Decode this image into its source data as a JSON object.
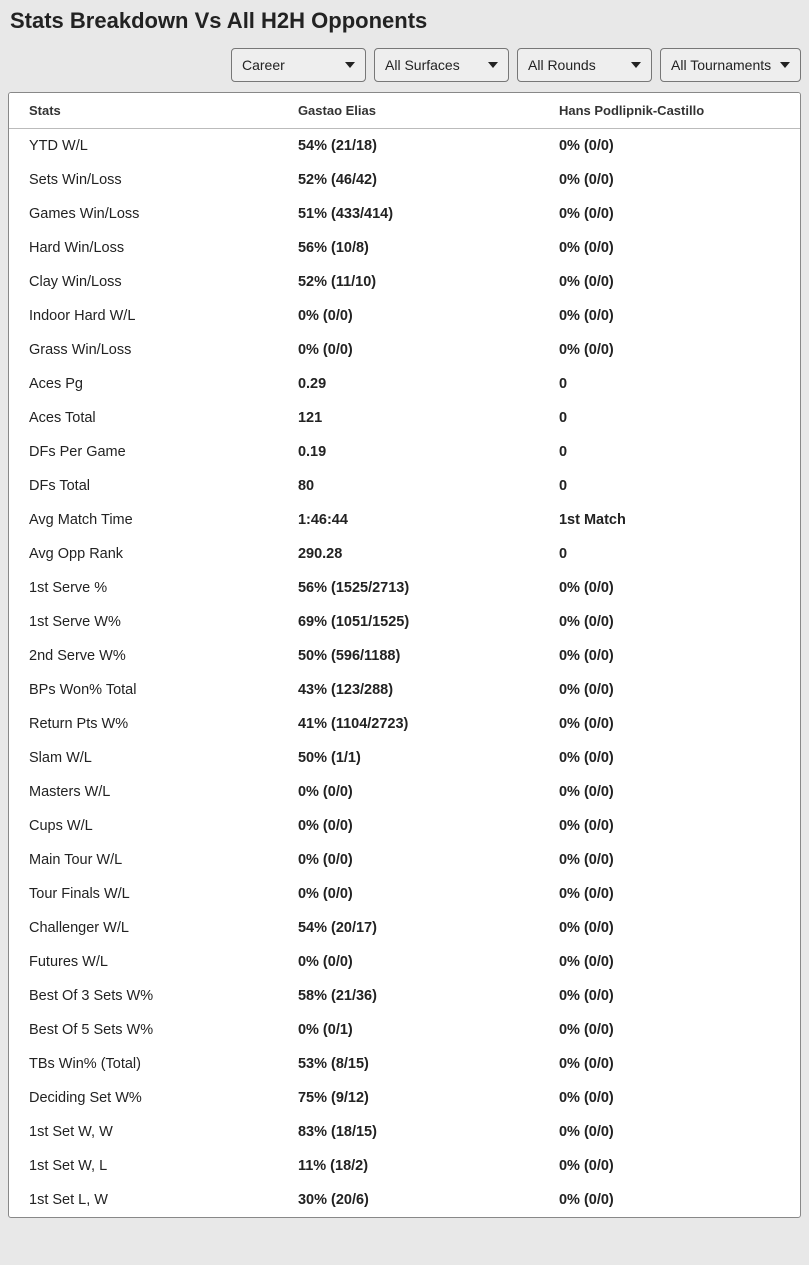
{
  "title": "Stats Breakdown Vs All H2H Opponents",
  "filters": {
    "career": "Career",
    "surfaces": "All Surfaces",
    "rounds": "All Rounds",
    "tournaments": "All Tournaments"
  },
  "columns": {
    "stats": "Stats",
    "player1": "Gastao Elias",
    "player2": "Hans Podlipnik-Castillo"
  },
  "rows": [
    {
      "label": "YTD W/L",
      "p1": "54% (21/18)",
      "p2": "0% (0/0)"
    },
    {
      "label": "Sets Win/Loss",
      "p1": "52% (46/42)",
      "p2": "0% (0/0)"
    },
    {
      "label": "Games Win/Loss",
      "p1": "51% (433/414)",
      "p2": "0% (0/0)"
    },
    {
      "label": "Hard Win/Loss",
      "p1": "56% (10/8)",
      "p2": "0% (0/0)"
    },
    {
      "label": "Clay Win/Loss",
      "p1": "52% (11/10)",
      "p2": "0% (0/0)"
    },
    {
      "label": "Indoor Hard W/L",
      "p1": "0% (0/0)",
      "p2": "0% (0/0)"
    },
    {
      "label": "Grass Win/Loss",
      "p1": "0% (0/0)",
      "p2": "0% (0/0)"
    },
    {
      "label": "Aces Pg",
      "p1": "0.29",
      "p2": "0"
    },
    {
      "label": "Aces Total",
      "p1": "121",
      "p2": "0"
    },
    {
      "label": "DFs Per Game",
      "p1": "0.19",
      "p2": "0"
    },
    {
      "label": "DFs Total",
      "p1": "80",
      "p2": "0"
    },
    {
      "label": "Avg Match Time",
      "p1": "1:46:44",
      "p2": "1st Match"
    },
    {
      "label": "Avg Opp Rank",
      "p1": "290.28",
      "p2": "0"
    },
    {
      "label": "1st Serve %",
      "p1": "56% (1525/2713)",
      "p2": "0% (0/0)"
    },
    {
      "label": "1st Serve W%",
      "p1": "69% (1051/1525)",
      "p2": "0% (0/0)"
    },
    {
      "label": "2nd Serve W%",
      "p1": "50% (596/1188)",
      "p2": "0% (0/0)"
    },
    {
      "label": "BPs Won% Total",
      "p1": "43% (123/288)",
      "p2": "0% (0/0)"
    },
    {
      "label": "Return Pts W%",
      "p1": "41% (1104/2723)",
      "p2": "0% (0/0)"
    },
    {
      "label": "Slam W/L",
      "p1": "50% (1/1)",
      "p2": "0% (0/0)"
    },
    {
      "label": "Masters W/L",
      "p1": "0% (0/0)",
      "p2": "0% (0/0)"
    },
    {
      "label": "Cups W/L",
      "p1": "0% (0/0)",
      "p2": "0% (0/0)"
    },
    {
      "label": "Main Tour W/L",
      "p1": "0% (0/0)",
      "p2": "0% (0/0)"
    },
    {
      "label": "Tour Finals W/L",
      "p1": "0% (0/0)",
      "p2": "0% (0/0)"
    },
    {
      "label": "Challenger W/L",
      "p1": "54% (20/17)",
      "p2": "0% (0/0)"
    },
    {
      "label": "Futures W/L",
      "p1": "0% (0/0)",
      "p2": "0% (0/0)"
    },
    {
      "label": "Best Of 3 Sets W%",
      "p1": "58% (21/36)",
      "p2": "0% (0/0)"
    },
    {
      "label": "Best Of 5 Sets W%",
      "p1": "0% (0/1)",
      "p2": "0% (0/0)"
    },
    {
      "label": "TBs Win% (Total)",
      "p1": "53% (8/15)",
      "p2": "0% (0/0)"
    },
    {
      "label": "Deciding Set W%",
      "p1": "75% (9/12)",
      "p2": "0% (0/0)"
    },
    {
      "label": "1st Set W, W",
      "p1": "83% (18/15)",
      "p2": "0% (0/0)"
    },
    {
      "label": "1st Set W, L",
      "p1": "11% (18/2)",
      "p2": "0% (0/0)"
    },
    {
      "label": "1st Set L, W",
      "p1": "30% (20/6)",
      "p2": "0% (0/0)"
    }
  ]
}
